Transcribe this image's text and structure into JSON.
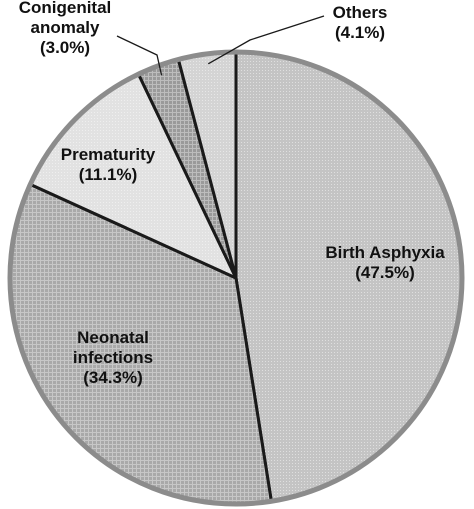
{
  "chart_data": {
    "type": "pie",
    "title": "",
    "slices": [
      {
        "name": "Birth Asphyxia",
        "value": 47.5,
        "label_pct": "(47.5%)",
        "color": "#c4c4c4",
        "pattern": "dots"
      },
      {
        "name": "Neonatal infections",
        "name_lines": [
          "Neonatal",
          "infections"
        ],
        "value": 34.3,
        "label_pct": "(34.3%)",
        "color": "#a9a9a9",
        "pattern": "grid"
      },
      {
        "name": "Prematurity",
        "value": 11.1,
        "label_pct": "(11.1%)",
        "color": "#e2e2e2",
        "pattern": "dots"
      },
      {
        "name": "Conigenital anomaly",
        "name_lines": [
          "Conigenital",
          "anomaly"
        ],
        "value": 3.0,
        "label_pct": "(3.0%)",
        "color": "#9a9a9a",
        "pattern": "grid"
      },
      {
        "name": "Others",
        "value": 4.1,
        "label_pct": "(4.1%)",
        "color": "#d4d4d4",
        "pattern": "dots"
      }
    ],
    "start_angle": "12 o'clock",
    "direction": "clockwise",
    "legend": "none, labels placed on or beside slices"
  }
}
